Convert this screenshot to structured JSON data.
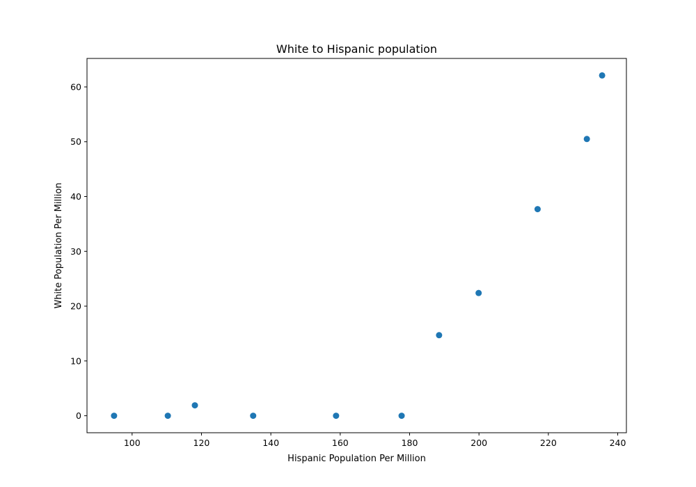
{
  "chart_data": {
    "type": "scatter",
    "title": "White to Hispanic population",
    "xlabel": "Hispanic Population Per Million",
    "ylabel": "White Population Per Million",
    "xlim": [
      87.0,
      242.5
    ],
    "ylim": [
      -3.1,
      65.2
    ],
    "xticks": [
      100,
      120,
      140,
      160,
      180,
      200,
      220,
      240
    ],
    "yticks": [
      0,
      10,
      20,
      30,
      40,
      50,
      60
    ],
    "grid": false,
    "legend": "none",
    "marker_color": "#1f77b4",
    "points": [
      {
        "x": 94.8,
        "y": 0
      },
      {
        "x": 110.3,
        "y": 0
      },
      {
        "x": 118.1,
        "y": 1.9
      },
      {
        "x": 134.9,
        "y": 0
      },
      {
        "x": 158.8,
        "y": 0
      },
      {
        "x": 177.7,
        "y": 0
      },
      {
        "x": 188.5,
        "y": 14.7
      },
      {
        "x": 199.9,
        "y": 22.4
      },
      {
        "x": 216.9,
        "y": 37.7
      },
      {
        "x": 231.1,
        "y": 50.5
      },
      {
        "x": 235.5,
        "y": 62.1
      }
    ]
  }
}
